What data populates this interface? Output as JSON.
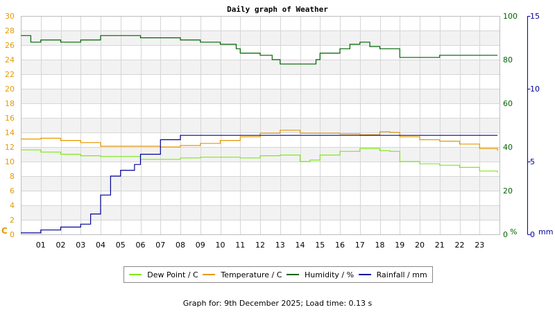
{
  "chart_data": {
    "type": "line",
    "title": "Daily graph of Weather",
    "x_ticks": [
      "01",
      "02",
      "03",
      "04",
      "05",
      "06",
      "07",
      "08",
      "09",
      "10",
      "11",
      "12",
      "13",
      "14",
      "15",
      "16",
      "17",
      "18",
      "19",
      "20",
      "21",
      "22",
      "23"
    ],
    "xlim": [
      0,
      24
    ],
    "axes": {
      "temp": {
        "unit": "C",
        "range": [
          0,
          30
        ],
        "ticks": [
          0,
          2,
          4,
          6,
          8,
          10,
          12,
          14,
          16,
          18,
          20,
          22,
          24,
          26,
          28,
          30
        ],
        "color": "#e69900"
      },
      "humidity": {
        "unit": "%",
        "range": [
          0,
          100
        ],
        "ticks": [
          0,
          20,
          40,
          60,
          80,
          100
        ],
        "color": "#006400"
      },
      "rain": {
        "unit": "mm",
        "range": [
          0,
          15
        ],
        "ticks": [
          0,
          5,
          10,
          15
        ],
        "color": "#000099"
      }
    },
    "grid": true,
    "legend_position": "bottom",
    "series": [
      {
        "name": "Dew Point / C",
        "axis": "temp",
        "color": "#80e81a",
        "points": [
          [
            0,
            11.6
          ],
          [
            1,
            11.3
          ],
          [
            2,
            11.0
          ],
          [
            3,
            10.8
          ],
          [
            4,
            10.7
          ],
          [
            5,
            10.7
          ],
          [
            6,
            10.3
          ],
          [
            7,
            10.3
          ],
          [
            8,
            10.5
          ],
          [
            9,
            10.6
          ],
          [
            10,
            10.6
          ],
          [
            11,
            10.5
          ],
          [
            12,
            10.8
          ],
          [
            13,
            10.9
          ],
          [
            14,
            10.0
          ],
          [
            14.5,
            10.2
          ],
          [
            15,
            10.9
          ],
          [
            16,
            11.4
          ],
          [
            17,
            11.8
          ],
          [
            18,
            11.5
          ],
          [
            18.5,
            11.4
          ],
          [
            19,
            10.0
          ],
          [
            20,
            9.7
          ],
          [
            21,
            9.5
          ],
          [
            22,
            9.2
          ],
          [
            23,
            8.7
          ],
          [
            23.9,
            8.5
          ]
        ]
      },
      {
        "name": "Temperature / C",
        "axis": "temp",
        "color": "#e69900",
        "points": [
          [
            0,
            13.1
          ],
          [
            1,
            13.2
          ],
          [
            2,
            12.9
          ],
          [
            3,
            12.6
          ],
          [
            4,
            12.1
          ],
          [
            5,
            12.1
          ],
          [
            6,
            12.1
          ],
          [
            7,
            12.0
          ],
          [
            8,
            12.2
          ],
          [
            9,
            12.5
          ],
          [
            10,
            12.9
          ],
          [
            11,
            13.4
          ],
          [
            12,
            13.9
          ],
          [
            13,
            14.3
          ],
          [
            14,
            13.9
          ],
          [
            15,
            13.9
          ],
          [
            16,
            13.8
          ],
          [
            17,
            13.7
          ],
          [
            18,
            14.1
          ],
          [
            18.5,
            14.0
          ],
          [
            19,
            13.4
          ],
          [
            20,
            13.0
          ],
          [
            21,
            12.8
          ],
          [
            22,
            12.4
          ],
          [
            23,
            11.8
          ],
          [
            23.9,
            11.5
          ]
        ]
      },
      {
        "name": "Humidity / %",
        "axis": "humidity",
        "color": "#006400",
        "points": [
          [
            0,
            91
          ],
          [
            0.5,
            88
          ],
          [
            1,
            89
          ],
          [
            2,
            88
          ],
          [
            3,
            89
          ],
          [
            4,
            91
          ],
          [
            5,
            91
          ],
          [
            6,
            90
          ],
          [
            7,
            90
          ],
          [
            8,
            89
          ],
          [
            9,
            88
          ],
          [
            10,
            87
          ],
          [
            10.8,
            85
          ],
          [
            11,
            83
          ],
          [
            12,
            82
          ],
          [
            12.6,
            80
          ],
          [
            13,
            78
          ],
          [
            14,
            78
          ],
          [
            14.8,
            80
          ],
          [
            15,
            83
          ],
          [
            16,
            85
          ],
          [
            16.5,
            87
          ],
          [
            17,
            88
          ],
          [
            17.5,
            86
          ],
          [
            18,
            85
          ],
          [
            19,
            81
          ],
          [
            20,
            81
          ],
          [
            21,
            82
          ],
          [
            22,
            82
          ],
          [
            23,
            82
          ],
          [
            23.9,
            82
          ]
        ]
      },
      {
        "name": "Rainfall / mm",
        "axis": "rain",
        "color": "#000099",
        "points": [
          [
            0,
            0.1
          ],
          [
            1,
            0.3
          ],
          [
            2,
            0.5
          ],
          [
            3,
            0.7
          ],
          [
            3.5,
            1.4
          ],
          [
            4,
            2.7
          ],
          [
            4.5,
            4.0
          ],
          [
            5,
            4.4
          ],
          [
            5.7,
            4.8
          ],
          [
            6,
            5.5
          ],
          [
            7,
            6.5
          ],
          [
            8,
            6.8
          ],
          [
            12,
            6.8
          ],
          [
            14,
            6.8
          ],
          [
            23.9,
            6.8
          ]
        ]
      }
    ]
  },
  "footer": "Graph for: 9th December 2025; Load time: 0.13 s"
}
